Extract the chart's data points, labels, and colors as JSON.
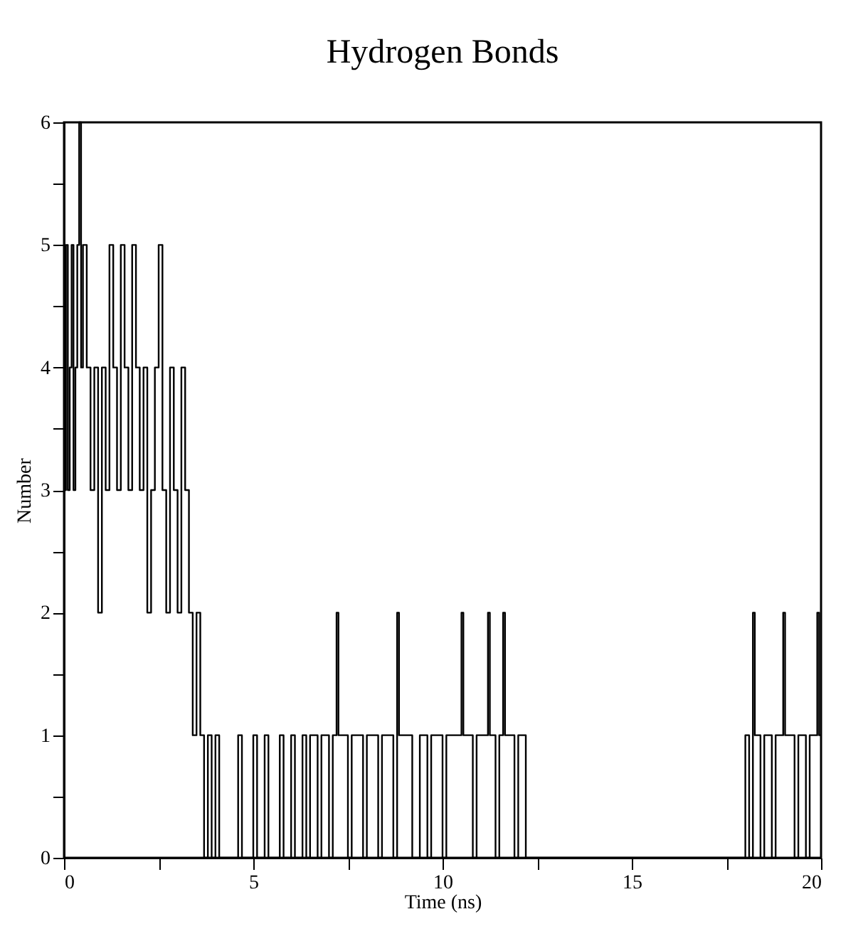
{
  "chart_data": {
    "type": "step",
    "title": "Hydrogen Bonds",
    "xlabel": "Time (ns)",
    "ylabel": "Number",
    "xlim": [
      0,
      20
    ],
    "ylim": [
      0,
      6
    ],
    "xticks": [
      0,
      {
        "value": 2.5,
        "label": null
      },
      5,
      {
        "value": 7.5,
        "label": null
      },
      10,
      {
        "value": 12.5,
        "label": null
      },
      15,
      {
        "value": 17.5,
        "label": null
      },
      20
    ],
    "yticks": [
      0,
      {
        "value": 0.5,
        "label": null
      },
      1,
      {
        "value": 1.5,
        "label": null
      },
      2,
      {
        "value": 2.5,
        "label": null
      },
      3,
      {
        "value": 3.5,
        "label": null
      },
      4,
      {
        "value": 4.5,
        "label": null
      },
      5,
      {
        "value": 5.5,
        "label": null
      },
      6
    ],
    "grid": false,
    "marker": "none",
    "line_style": "solid",
    "series": [
      {
        "color": "#000000",
        "x": [
          0.0,
          0.05,
          0.1,
          0.15,
          0.2,
          0.25,
          0.3,
          0.35,
          0.4,
          0.45,
          0.5,
          0.6,
          0.7,
          0.8,
          0.9,
          1.0,
          1.1,
          1.2,
          1.3,
          1.4,
          1.5,
          1.6,
          1.7,
          1.8,
          1.9,
          2.0,
          2.1,
          2.2,
          2.3,
          2.4,
          2.5,
          2.6,
          2.7,
          2.8,
          2.9,
          3.0,
          3.1,
          3.2,
          3.3,
          3.4,
          3.5,
          3.6,
          3.7,
          3.8,
          3.9,
          4.0,
          4.1,
          4.6,
          4.7,
          5.0,
          5.1,
          5.3,
          5.4,
          5.7,
          5.8,
          6.0,
          6.1,
          6.3,
          6.4,
          6.5,
          6.7,
          6.8,
          7.0,
          7.1,
          7.2,
          7.25,
          7.5,
          7.6,
          7.9,
          8.0,
          8.3,
          8.4,
          8.7,
          8.8,
          8.85,
          9.2,
          9.4,
          9.6,
          9.7,
          10.0,
          10.1,
          10.5,
          10.55,
          10.8,
          10.9,
          11.2,
          11.25,
          11.4,
          11.5,
          11.6,
          11.65,
          11.9,
          12.0,
          12.2,
          18.0,
          18.1,
          18.2,
          18.25,
          18.4,
          18.5,
          18.7,
          18.8,
          19.0,
          19.05,
          19.3,
          19.4,
          19.6,
          19.7,
          19.9,
          19.95,
          20.0
        ],
        "values": [
          3,
          5,
          3,
          4,
          5,
          3,
          4,
          5,
          6,
          4,
          5,
          4,
          3,
          4,
          2,
          4,
          3,
          5,
          4,
          3,
          5,
          4,
          3,
          5,
          4,
          3,
          4,
          2,
          3,
          4,
          5,
          3,
          2,
          4,
          3,
          2,
          4,
          3,
          2,
          1,
          2,
          1,
          0,
          1,
          0,
          1,
          0,
          1,
          0,
          1,
          0,
          1,
          0,
          1,
          0,
          1,
          0,
          1,
          0,
          1,
          0,
          1,
          0,
          1,
          2,
          1,
          0,
          1,
          0,
          1,
          0,
          1,
          0,
          2,
          1,
          0,
          1,
          0,
          1,
          0,
          1,
          2,
          1,
          0,
          1,
          2,
          1,
          0,
          1,
          2,
          1,
          0,
          1,
          0,
          1,
          0,
          2,
          1,
          0,
          1,
          0,
          1,
          2,
          1,
          0,
          1,
          0,
          1,
          2,
          1,
          1
        ]
      }
    ]
  }
}
